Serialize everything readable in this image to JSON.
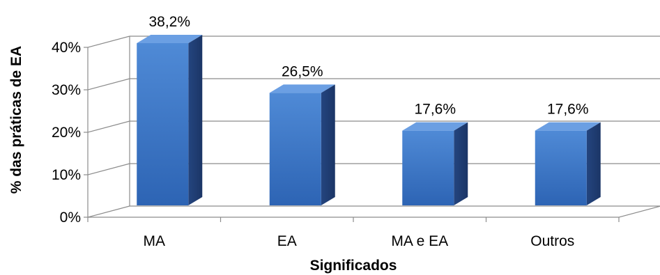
{
  "chart_data": {
    "type": "bar",
    "style": "3d-column",
    "categories": [
      "MA",
      "EA",
      "MA e EA",
      "Outros"
    ],
    "values": [
      38.2,
      26.5,
      17.6,
      17.6
    ],
    "data_labels": [
      "38,2%",
      "26,5%",
      "17,6%",
      "17,6%"
    ],
    "xlabel": "Significados",
    "ylabel": "% das práticas de EA",
    "ylim": [
      0,
      40
    ],
    "y_ticks": [
      0,
      10,
      20,
      30,
      40
    ],
    "y_tick_labels": [
      "0%",
      "10%",
      "20%",
      "30%",
      "40%"
    ],
    "grid": true,
    "legend": "none",
    "colors": {
      "bar_front_top": "#4f8ad6",
      "bar_front_bottom": "#2d64b4",
      "bar_side": "#213f78",
      "bar_top": "#6b9fe3",
      "gridline": "#8c8c8c"
    }
  }
}
